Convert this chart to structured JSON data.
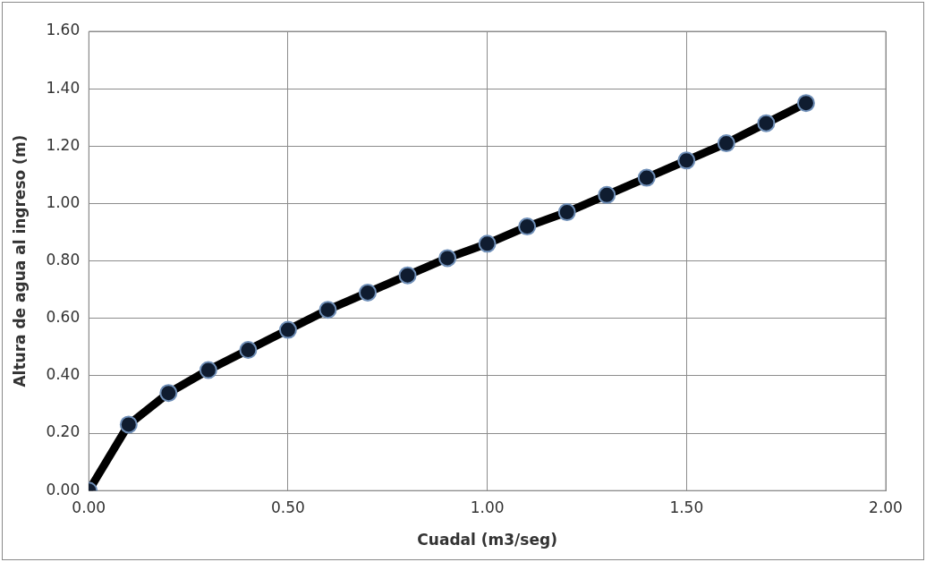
{
  "chart_data": {
    "type": "line",
    "xlabel": "Cuadal (m3/seg)",
    "ylabel": "Altura de agua al ingreso (m)",
    "x": [
      0,
      0.1,
      0.2,
      0.3,
      0.4,
      0.5,
      0.6,
      0.7,
      0.8,
      0.9,
      1.0,
      1.1,
      1.2,
      1.3,
      1.4,
      1.5,
      1.6,
      1.7,
      1.8
    ],
    "series": [
      {
        "color": "#000000",
        "values": [
          0,
          0.23,
          0.34,
          0.42,
          0.49,
          0.56,
          0.63,
          0.69,
          0.75,
          0.81,
          0.86,
          0.92,
          0.97,
          1.03,
          1.09,
          1.15,
          1.21,
          1.28,
          1.35
        ]
      }
    ],
    "xlim": [
      0,
      2
    ],
    "xticks": [
      {
        "value": 0,
        "label": "0.00"
      },
      {
        "value": 0.5,
        "label": "0.50"
      },
      {
        "value": 1,
        "label": "1.00"
      },
      {
        "value": 1.5,
        "label": "1.50"
      },
      {
        "value": 2,
        "label": "2.00"
      }
    ],
    "ylim": [
      0,
      1.6
    ],
    "yticks": [
      {
        "value": 0,
        "label": "0.00"
      },
      {
        "value": 0.2,
        "label": "0.20"
      },
      {
        "value": 0.4,
        "label": "0.40"
      },
      {
        "value": 0.6,
        "label": "0.60"
      },
      {
        "value": 0.8,
        "label": "0.80"
      },
      {
        "value": 1,
        "label": "1.00"
      },
      {
        "value": 1.2,
        "label": "1.20"
      },
      {
        "value": 1.4,
        "label": "1.40"
      },
      {
        "value": 1.6,
        "label": "1.60"
      }
    ],
    "grid": true,
    "legend": false,
    "marker": "circle",
    "line_style": "solid"
  }
}
